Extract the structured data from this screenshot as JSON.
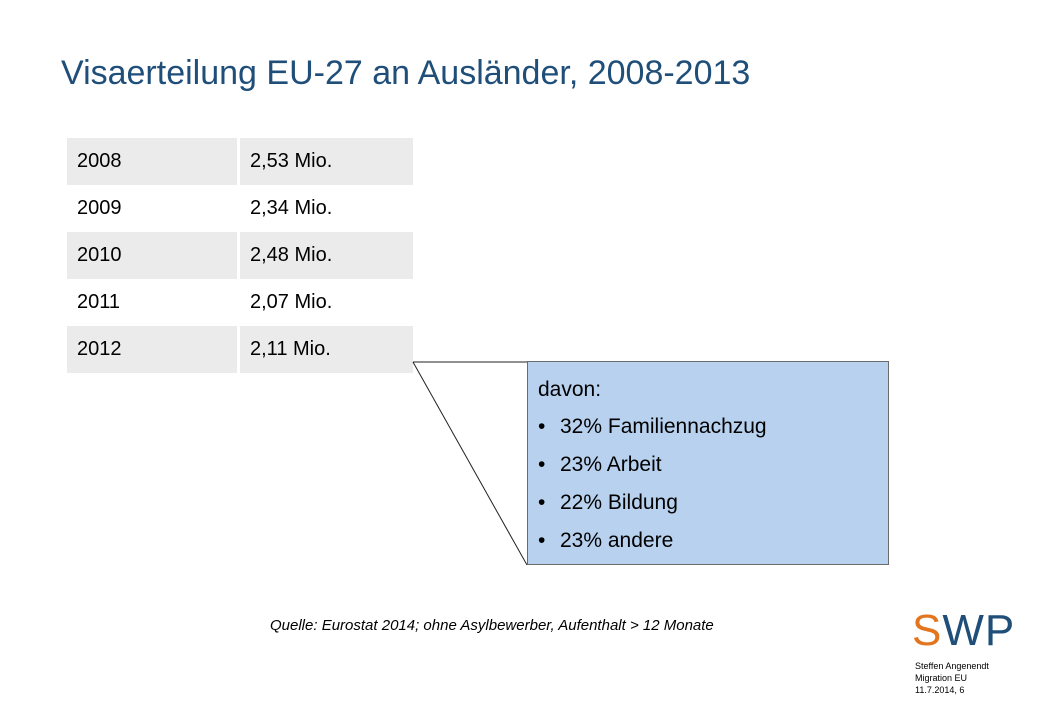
{
  "slide": {
    "title": "Visaerteilung EU-27 an Ausländer, 2008-2013"
  },
  "table": {
    "rows": [
      {
        "year": "2008",
        "value": "2,53 Mio."
      },
      {
        "year": "2009",
        "value": "2,34 Mio."
      },
      {
        "year": "2010",
        "value": "2,48 Mio."
      },
      {
        "year": "2011",
        "value": "2,07 Mio."
      },
      {
        "year": "2012",
        "value": "2,11 Mio."
      }
    ]
  },
  "callout": {
    "heading": "davon:",
    "bullet_glyph": "•",
    "items": [
      "32% Familiennachzug",
      "23% Arbeit",
      "22% Bildung",
      "23% andere"
    ],
    "background_color": "#b7d1ee"
  },
  "source": "Quelle: Eurostat 2014; ohne Asylbewerber, Aufenthalt > 12 Monate",
  "logo": {
    "letter_s": "S",
    "letters_wp": "WP",
    "accent_color": "#e2751d",
    "brand_color": "#1f4e79"
  },
  "footer": {
    "author": "Steffen Angenendt",
    "topic": "Migration EU",
    "date_page": "11.7.2014, 6"
  }
}
